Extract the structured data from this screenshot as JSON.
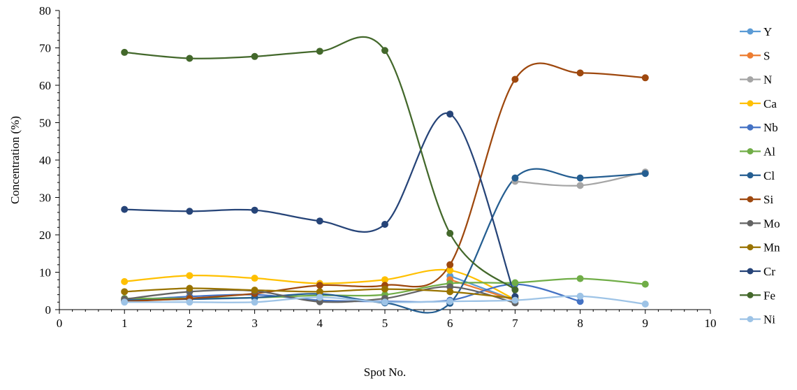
{
  "chart_data": {
    "type": "line",
    "title": "",
    "xlabel": "Spot No.",
    "ylabel": "Concentration (%)",
    "xlim": [
      0,
      10
    ],
    "ylim": [
      0,
      80
    ],
    "x_ticks": [
      0,
      1,
      2,
      3,
      4,
      5,
      6,
      7,
      8,
      9,
      10
    ],
    "y_ticks": [
      0,
      10,
      20,
      30,
      40,
      50,
      60,
      70,
      80
    ],
    "smooth": true,
    "grid": false,
    "legend_position": "right",
    "series": [
      {
        "name": "Y",
        "color": "#5b9bd5",
        "points": [
          [
            6,
            9.0
          ],
          [
            7,
            2.5
          ]
        ]
      },
      {
        "name": "S",
        "color": "#ed7d31",
        "points": [
          [
            6,
            8.0
          ],
          [
            7,
            2.5
          ]
        ]
      },
      {
        "name": "N",
        "color": "#a5a5a5",
        "points": [
          [
            7,
            34.3
          ],
          [
            8,
            33.2
          ],
          [
            9,
            36.8
          ]
        ]
      },
      {
        "name": "Ca",
        "color": "#ffc000",
        "points": [
          [
            1,
            7.5
          ],
          [
            2,
            9.1
          ],
          [
            3,
            8.4
          ],
          [
            4,
            7.0
          ],
          [
            5,
            8.0
          ],
          [
            6,
            10.5
          ],
          [
            7,
            2.7
          ]
        ]
      },
      {
        "name": "Nb",
        "color": "#4472c4",
        "points": [
          [
            1,
            2.5
          ],
          [
            2,
            3.5
          ],
          [
            3,
            4.0
          ],
          [
            4,
            2.5
          ],
          [
            5,
            2.2
          ],
          [
            6,
            2.5
          ],
          [
            7,
            6.8
          ],
          [
            8,
            2.2
          ]
        ]
      },
      {
        "name": "Al",
        "color": "#70ad47",
        "points": [
          [
            1,
            3.0
          ],
          [
            2,
            3.0
          ],
          [
            3,
            3.2
          ],
          [
            4,
            3.8
          ],
          [
            5,
            4.0
          ],
          [
            6,
            7.0
          ],
          [
            7,
            7.2
          ],
          [
            8,
            8.3
          ],
          [
            9,
            6.8
          ]
        ]
      },
      {
        "name": "Cl",
        "color": "#255e91",
        "points": [
          [
            1,
            2.5
          ],
          [
            2,
            2.8
          ],
          [
            3,
            3.2
          ],
          [
            4,
            4.2
          ],
          [
            5,
            1.8
          ],
          [
            6,
            1.7
          ],
          [
            7,
            35.2
          ],
          [
            8,
            35.2
          ],
          [
            9,
            36.4
          ]
        ]
      },
      {
        "name": "Si",
        "color": "#9e480e",
        "points": [
          [
            1,
            2.2
          ],
          [
            2,
            3.0
          ],
          [
            3,
            4.3
          ],
          [
            4,
            6.5
          ],
          [
            5,
            6.5
          ],
          [
            6,
            12.0
          ],
          [
            7,
            61.6
          ],
          [
            8,
            63.3
          ],
          [
            9,
            62.0
          ]
        ]
      },
      {
        "name": "Mo",
        "color": "#636363",
        "points": [
          [
            1,
            2.8
          ],
          [
            2,
            4.8
          ],
          [
            3,
            5.0
          ],
          [
            4,
            2.1
          ],
          [
            5,
            3.0
          ],
          [
            6,
            6.1
          ],
          [
            7,
            1.8
          ]
        ]
      },
      {
        "name": "Mn",
        "color": "#997300",
        "points": [
          [
            1,
            4.8
          ],
          [
            2,
            5.7
          ],
          [
            3,
            5.2
          ],
          [
            4,
            4.8
          ],
          [
            5,
            5.5
          ],
          [
            6,
            4.8
          ],
          [
            7,
            3.0
          ]
        ]
      },
      {
        "name": "Cr",
        "color": "#264478",
        "points": [
          [
            1,
            26.8
          ],
          [
            2,
            26.3
          ],
          [
            3,
            26.6
          ],
          [
            4,
            23.7
          ],
          [
            5,
            22.8
          ],
          [
            6,
            52.3
          ],
          [
            7,
            3.5
          ]
        ]
      },
      {
        "name": "Fe",
        "color": "#43682b",
        "points": [
          [
            1,
            68.8
          ],
          [
            2,
            67.2
          ],
          [
            3,
            67.7
          ],
          [
            4,
            69.1
          ],
          [
            5,
            69.3
          ],
          [
            6,
            20.4
          ],
          [
            7,
            5.3
          ]
        ]
      },
      {
        "name": "Ni",
        "color": "#9dc3e6",
        "points": [
          [
            1,
            2.0
          ],
          [
            2,
            2.0
          ],
          [
            3,
            2.0
          ],
          [
            4,
            3.3
          ],
          [
            5,
            2.0
          ],
          [
            6,
            2.2
          ],
          [
            7,
            2.5
          ],
          [
            8,
            3.6
          ],
          [
            9,
            1.5
          ]
        ]
      }
    ]
  }
}
